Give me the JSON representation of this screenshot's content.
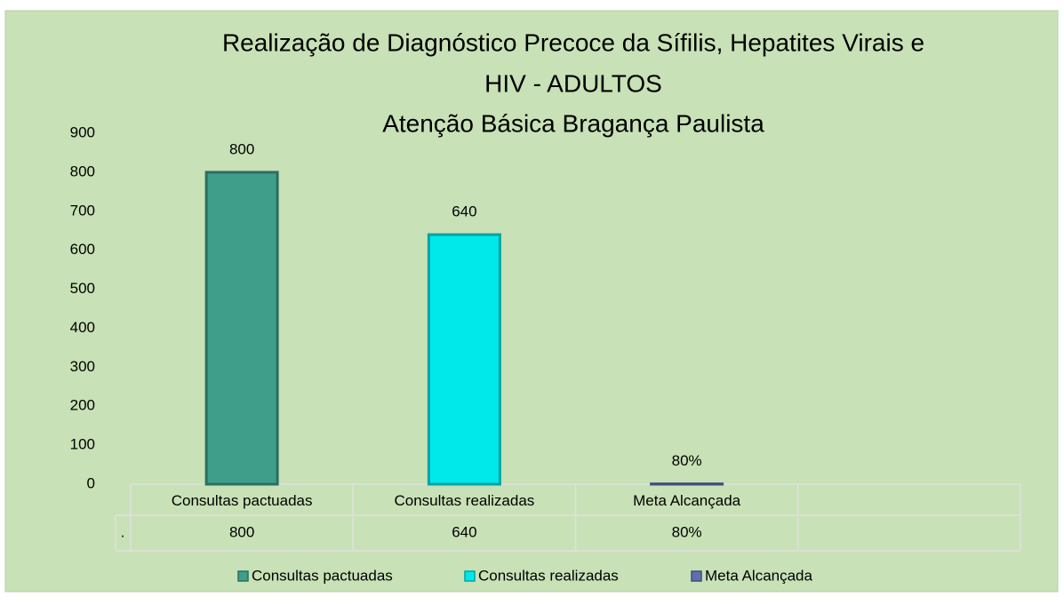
{
  "chart_data": {
    "type": "bar",
    "title": [
      "Realização de Diagnóstico Precoce da Sífilis, Hepatites Virais e",
      "HIV - ADULTOS",
      "Atenção Básica  Bragança Paulista"
    ],
    "categories": [
      "Consultas pactuadas",
      "Consultas  realizadas",
      "Meta Alcançada",
      null
    ],
    "series": [
      {
        "name": ".",
        "colors": [
          "#3f9e8a",
          "#00e9ea",
          "#5d6fae",
          null
        ],
        "values": [
          800,
          640,
          0.8,
          null
        ],
        "value_labels": [
          "800",
          "640",
          "80%",
          null
        ]
      }
    ],
    "ylim": [
      0,
      900
    ],
    "yticks": [
      0,
      100,
      200,
      300,
      400,
      500,
      600,
      700,
      800,
      900
    ],
    "grid": false,
    "data_table": true,
    "legend": "bottom"
  }
}
